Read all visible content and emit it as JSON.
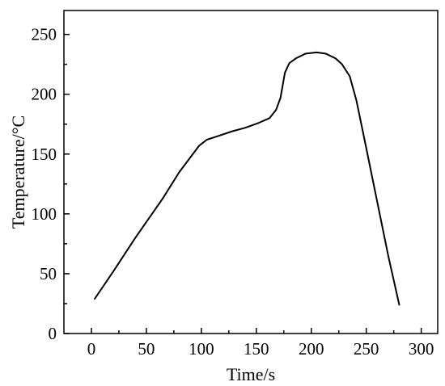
{
  "chart_data": {
    "type": "line",
    "title": "",
    "xlabel": "Time/s",
    "ylabel": "Temperature/°C",
    "xlim": [
      -25,
      315
    ],
    "ylim": [
      0,
      270
    ],
    "x_ticks": [
      0,
      50,
      100,
      150,
      200,
      250,
      300
    ],
    "y_ticks": [
      0,
      50,
      100,
      150,
      200,
      250
    ],
    "x_tick_labels": [
      "0",
      "50",
      "100",
      "150",
      "200",
      "250",
      "300"
    ],
    "y_tick_labels": [
      "0",
      "50",
      "100",
      "150",
      "200",
      "250"
    ],
    "grid": false,
    "legend": "none",
    "line_color": "#000000",
    "series": [
      {
        "x": [
          3,
          20,
          40,
          65,
          80,
          98,
          105,
          115,
          128,
          140,
          152,
          162,
          168,
          172,
          176,
          180,
          186,
          195,
          205,
          213,
          222,
          228,
          235,
          241,
          250,
          260,
          270,
          280
        ],
        "y": [
          29,
          52,
          80,
          113,
          135,
          157,
          162,
          165,
          169,
          172,
          176,
          180,
          187,
          197,
          218,
          226,
          230,
          234,
          235,
          234,
          230,
          225,
          215,
          195,
          155,
          110,
          65,
          24
        ]
      }
    ]
  }
}
